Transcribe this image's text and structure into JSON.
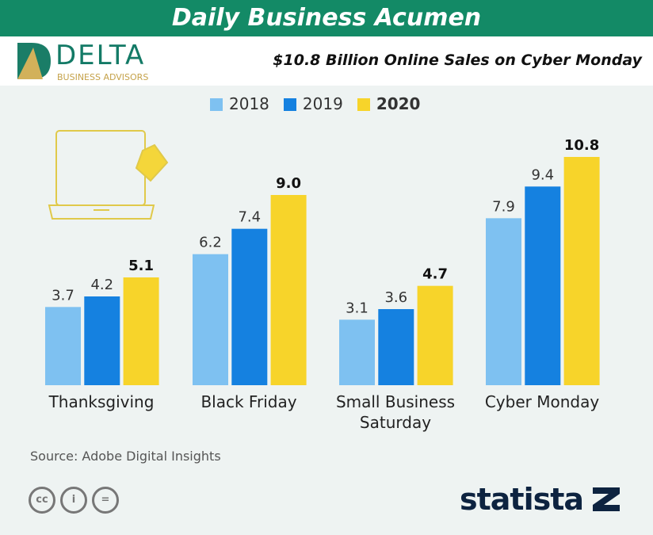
{
  "banner": {
    "title": "Daily Business Acumen"
  },
  "header": {
    "logo_word": "DELTA",
    "logo_sub": "BUSINESS ADVISORS",
    "subtitle": "$10.8 Billion Online Sales on Cyber Monday"
  },
  "footer": {
    "source": "Source: Adobe Digital Insights",
    "brand": "statista",
    "license_icons": [
      "cc-icon",
      "attribution-icon",
      "no-derivatives-icon"
    ]
  },
  "colors": {
    "2018": "#7ec1f1",
    "2019": "#1581e0",
    "2020": "#f7d42a",
    "banner": "#138a66"
  },
  "chart_data": {
    "type": "bar",
    "categories": [
      "Thanksgiving",
      "Black Friday",
      "Small Business Saturday",
      "Cyber Monday"
    ],
    "series": [
      {
        "name": "2018",
        "values": [
          3.7,
          6.2,
          3.1,
          7.9
        ]
      },
      {
        "name": "2019",
        "values": [
          4.2,
          7.4,
          3.6,
          9.4
        ]
      },
      {
        "name": "2020",
        "values": [
          5.1,
          9.0,
          4.7,
          10.8
        ]
      }
    ],
    "value_labels": [
      [
        "3.7",
        "6.2",
        "3.1",
        "7.9"
      ],
      [
        "4.2",
        "7.4",
        "3.6",
        "9.4"
      ],
      [
        "5.1",
        "9.0",
        "4.7",
        "10.8"
      ]
    ],
    "category_labels": [
      [
        "Thanksgiving"
      ],
      [
        "Black Friday"
      ],
      [
        "Small Business",
        "Saturday"
      ],
      [
        "Cyber Monday"
      ]
    ],
    "legend": "top",
    "grid": false,
    "ylim": [
      0,
      10.8
    ]
  }
}
